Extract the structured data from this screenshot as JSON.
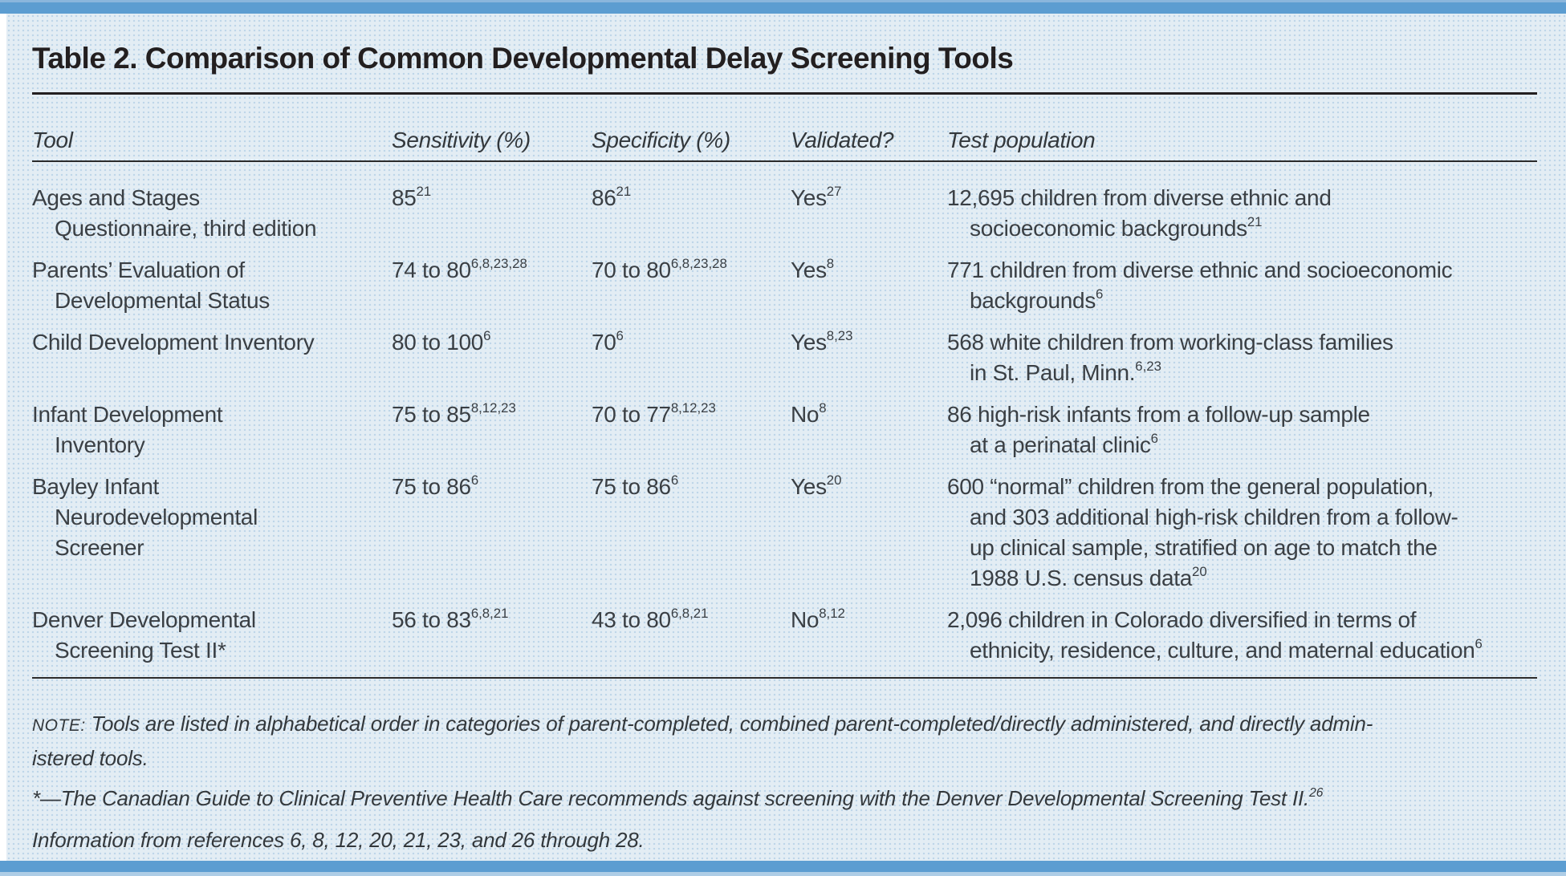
{
  "page": {
    "title": "Table 2. Comparison of Common Developmental Delay Screening Tools",
    "accent_color": "#5c9dd1",
    "panel_color": "#e3edf4",
    "rule_color": "#231f20"
  },
  "table": {
    "columns": [
      {
        "label": "Tool"
      },
      {
        "label": "Sensitivity (%)"
      },
      {
        "label": "Specificity (%)"
      },
      {
        "label": "Validated?"
      },
      {
        "label": "Test population"
      }
    ],
    "rows": [
      {
        "tool": [
          "Ages and Stages",
          "Questionnaire, third edition"
        ],
        "sensitivity": "85^{21}",
        "specificity": "86^{21}",
        "validated": "Yes^{27}",
        "population": [
          "12,695 children from diverse ethnic and",
          "socioeconomic backgrounds^{21}"
        ]
      },
      {
        "tool": [
          "Parents’ Evaluation of",
          "Developmental Status"
        ],
        "sensitivity": "74 to 80^{6,8,23,28}",
        "specificity": "70 to 80^{6,8,23,28}",
        "validated": "Yes^{8}",
        "population": [
          "771 children from diverse ethnic and socioeconomic",
          "backgrounds^{6}"
        ]
      },
      {
        "tool": [
          "Child Development Inventory"
        ],
        "sensitivity": "80 to 100^{6}",
        "specificity": "70^{6}",
        "validated": "Yes^{8,23}",
        "population": [
          "568 white children from working-class families",
          "in St. Paul, Minn.^{6,23}"
        ]
      },
      {
        "tool": [
          "Infant Development",
          "Inventory"
        ],
        "sensitivity": "75 to 85^{8,12,23}",
        "specificity": "70 to 77^{8,12,23}",
        "validated": "No^{8}",
        "population": [
          "86 high-risk infants from a follow-up sample",
          "at a perinatal clinic^{6}"
        ]
      },
      {
        "tool": [
          "Bayley Infant",
          "Neurodevelopmental",
          "Screener"
        ],
        "sensitivity": "75 to 86^{6}",
        "specificity": "75 to 86^{6}",
        "validated": "Yes^{20}",
        "population": [
          "600 “normal” children from the general population,",
          "and 303 additional high-risk children from a follow-",
          "up clinical sample, stratified on age to match the",
          "1988 U.S. census data^{20}"
        ]
      },
      {
        "tool": [
          "Denver Developmental",
          "Screening Test II*"
        ],
        "sensitivity": "56 to 83^{6,8,21}",
        "specificity": "43 to 80^{6,8,21}",
        "validated": "No^{8,12}",
        "population": [
          "2,096 children in Colorado diversified in terms of",
          "ethnicity, residence, culture, and maternal education^{6}"
        ]
      }
    ]
  },
  "notes": {
    "note_label": "NOTE:",
    "note_lines": [
      "Tools are listed in alphabetical order in categories of parent-completed, combined parent-completed/directly administered, and directly admin-",
      "istered tools."
    ],
    "asterisk_line": "*—The Canadian Guide to Clinical Preventive Health Care recommends against screening with the Denver Developmental Screening Test II.^{26}",
    "references_line": "Information from references 6, 8, 12, 20, 21, 23, and 26 through 28."
  }
}
